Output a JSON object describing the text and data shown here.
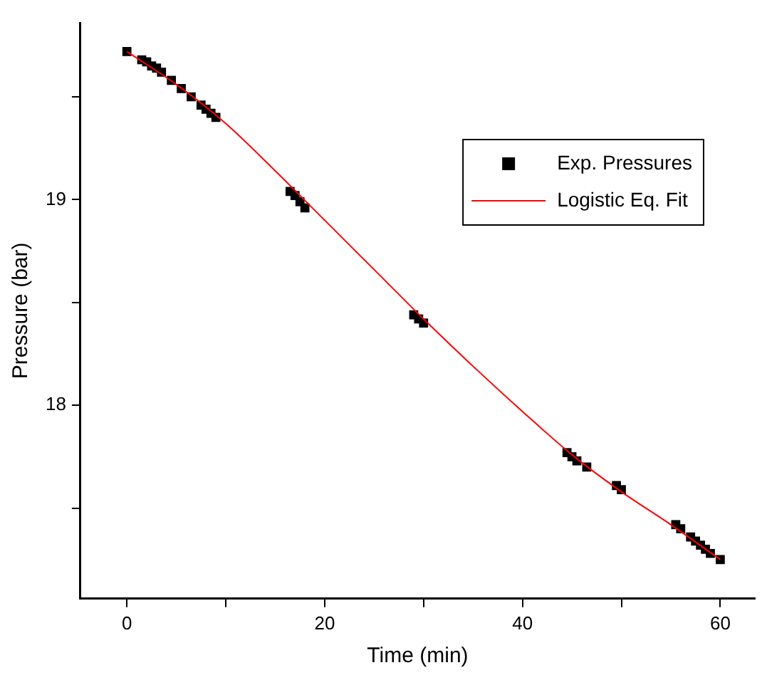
{
  "chart_data": {
    "type": "scatter",
    "xlabel": "Time (min)",
    "ylabel": "Pressure (bar)",
    "xlim": [
      -4.7,
      63.5
    ],
    "ylim": [
      17.06,
      19.86
    ],
    "xticks": [
      0,
      {
        "value": 10,
        "label": null
      },
      20,
      {
        "value": 30,
        "label": null
      },
      40,
      {
        "value": 50,
        "label": null
      },
      60
    ],
    "yticks": [
      {
        "value": 17.5,
        "label": null
      },
      18,
      {
        "value": 18.5,
        "label": null
      },
      19,
      {
        "value": 19.5,
        "label": null
      }
    ],
    "grid": false,
    "legend": "top right",
    "series": [
      {
        "name": "Exp. Pressures",
        "type": "scatter",
        "marker": "square",
        "color": "#000000",
        "x": [
          0,
          1.5,
          2,
          2.5,
          3,
          3.5,
          4.5,
          5.5,
          6.5,
          7.5,
          8,
          8.5,
          9,
          16.5,
          17,
          17.5,
          18,
          29,
          29.5,
          30,
          44.5,
          45,
          45.5,
          46.5,
          49.5,
          50,
          55.5,
          56,
          57,
          57.5,
          58,
          58.5,
          59,
          60
        ],
        "values": [
          19.72,
          19.68,
          19.67,
          19.65,
          19.64,
          19.62,
          19.58,
          19.54,
          19.5,
          19.46,
          19.44,
          19.42,
          19.4,
          19.04,
          19.02,
          18.99,
          18.96,
          18.44,
          18.42,
          18.4,
          17.77,
          17.75,
          17.73,
          17.7,
          17.61,
          17.59,
          17.42,
          17.4,
          17.36,
          17.34,
          17.32,
          17.3,
          17.28,
          17.25
        ]
      },
      {
        "name": "Logistic Eq. Fit",
        "type": "line",
        "marker": "none",
        "line_style": "solid",
        "color": "#ff0000",
        "x": [
          0,
          5,
          10,
          15,
          20,
          25,
          30,
          35,
          40,
          45,
          50,
          55,
          60
        ],
        "values": [
          19.72,
          19.56,
          19.37,
          19.14,
          18.9,
          18.66,
          18.42,
          18.19,
          17.97,
          17.76,
          17.58,
          17.42,
          17.25
        ]
      }
    ]
  }
}
